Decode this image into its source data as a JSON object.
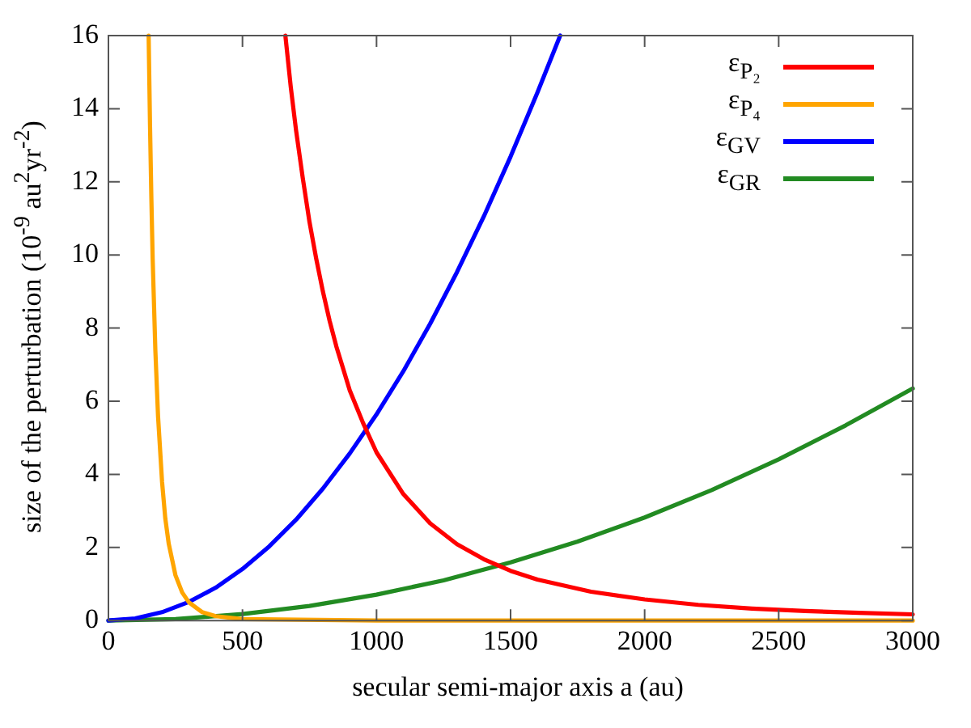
{
  "chart_data": {
    "type": "line",
    "xlabel": "secular semi-major axis a (au)",
    "ylabel": "size of the perturbation (10$^{-9}$ au$^{2}$yr$^{-2}$)",
    "xlim": [
      0,
      3000
    ],
    "xticks": [
      0,
      500,
      1000,
      1500,
      2000,
      2500,
      3000
    ],
    "ylim": [
      0,
      16
    ],
    "yticks": [
      0,
      2,
      4,
      6,
      8,
      10,
      12,
      14,
      16
    ],
    "grid": false,
    "legend": "top right",
    "marker": "none",
    "line_style": "solid",
    "series": [
      {
        "name": "ε$_{P₂}$",
        "color": "#ff0000",
        "x": [
          660,
          680,
          700,
          725,
          750,
          775,
          800,
          825,
          850,
          875,
          900,
          950,
          1000,
          1100,
          1200,
          1300,
          1400,
          1500,
          1600,
          1800,
          2000,
          2200,
          2400,
          2600,
          2800,
          3000
        ],
        "values": [
          16,
          14.6,
          13.4,
          12.1,
          10.9,
          9.9,
          9.0,
          8.2,
          7.5,
          6.9,
          6.3,
          5.4,
          4.6,
          3.46,
          2.66,
          2.09,
          1.68,
          1.36,
          1.12,
          0.79,
          0.58,
          0.43,
          0.33,
          0.26,
          0.21,
          0.17
        ]
      },
      {
        "name": "ε$_{P₄}$",
        "color": "#ffa500",
        "x": [
          150,
          155,
          160,
          165,
          175,
          185,
          200,
          212,
          225,
          250,
          275,
          300,
          350,
          400,
          500,
          1000,
          3000
        ],
        "values": [
          16,
          13.6,
          11.6,
          9.9,
          7.4,
          5.6,
          3.8,
          2.8,
          2.1,
          1.24,
          0.77,
          0.5,
          0.23,
          0.12,
          0.04,
          0,
          0
        ]
      },
      {
        "name": "ε$_{GV}$",
        "color": "#0000ff",
        "x": [
          0,
          100,
          200,
          300,
          400,
          500,
          600,
          700,
          800,
          900,
          1000,
          1100,
          1200,
          1300,
          1400,
          1500,
          1600,
          1685
        ],
        "values": [
          0,
          0.06,
          0.23,
          0.51,
          0.9,
          1.41,
          2.03,
          2.76,
          3.61,
          4.57,
          5.64,
          6.82,
          8.12,
          9.53,
          11.05,
          12.69,
          14.44,
          16
        ]
      },
      {
        "name": "ε$_{GR}$",
        "color": "#228b22",
        "x": [
          0,
          250,
          500,
          750,
          1000,
          1250,
          1500,
          1750,
          2000,
          2250,
          2500,
          2750,
          3000
        ],
        "values": [
          0,
          0.04,
          0.18,
          0.4,
          0.71,
          1.1,
          1.59,
          2.16,
          2.82,
          3.57,
          4.41,
          5.34,
          6.35
        ]
      }
    ]
  }
}
